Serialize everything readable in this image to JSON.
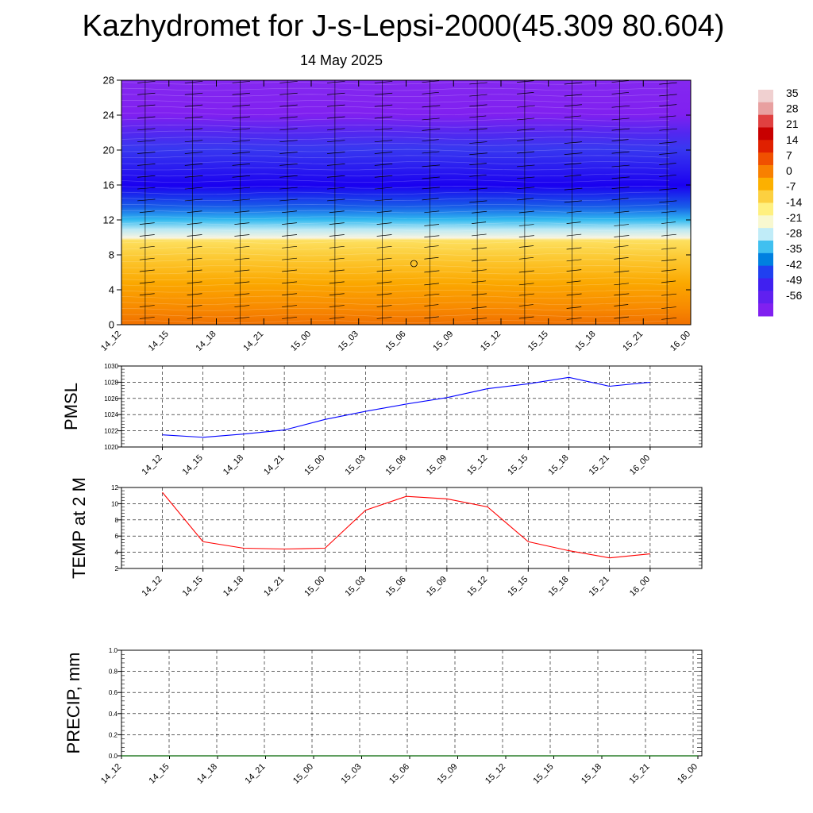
{
  "header": {
    "title": "Kazhydromet for J-s-Lepsi-2000(45.309 80.604)",
    "date": "14 May 2025"
  },
  "time_labels": [
    "14_12",
    "14_15",
    "14_18",
    "14_21",
    "15_00",
    "15_03",
    "15_06",
    "15_09",
    "15_12",
    "15_15",
    "15_18",
    "15_21",
    "16_00"
  ],
  "colorbar": {
    "labels": [
      "35",
      "28",
      "21",
      "14",
      "7",
      "0",
      "-7",
      "-14",
      "-21",
      "-28",
      "-35",
      "-42",
      "-49",
      "-56"
    ],
    "colors": [
      "#f0d0d0",
      "#e8a0a0",
      "#e04040",
      "#c80000",
      "#e02000",
      "#f05000",
      "#f88000",
      "#fcb000",
      "#fcd040",
      "#fff080",
      "#f8f8d0",
      "#c0ecf8",
      "#40c0f0",
      "#0080e0",
      "#2040f0",
      "#4020f0",
      "#6020f0",
      "#8020f0"
    ]
  },
  "chart_data": [
    {
      "type": "heatmap",
      "name": "",
      "x": [
        "14_12",
        "14_15",
        "14_18",
        "14_21",
        "15_00",
        "15_03",
        "15_06",
        "15_09",
        "15_12",
        "15_15",
        "15_18",
        "15_21",
        "16_00"
      ],
      "ylim": [
        0,
        28
      ],
      "yticks": [
        0,
        4,
        8,
        12,
        16,
        20,
        24,
        28
      ],
      "ylabel": "",
      "zrange": [
        -56,
        35
      ]
    },
    {
      "type": "line",
      "ylabel": "PMSL",
      "x": [
        "14_12",
        "14_15",
        "14_18",
        "14_21",
        "15_00",
        "15_03",
        "15_06",
        "15_09",
        "15_12",
        "15_15",
        "15_18",
        "15_21",
        "16_00"
      ],
      "values": [
        1021.5,
        1021.2,
        1021.6,
        1022.1,
        1023.4,
        1024.4,
        1025.3,
        1026.1,
        1027.2,
        1027.8,
        1028.6,
        1027.5,
        1028.0
      ],
      "ylim": [
        1020,
        1030
      ],
      "yticks": [
        1020,
        1022,
        1024,
        1026,
        1028,
        1030
      ],
      "color": "#0000ff"
    },
    {
      "type": "line",
      "ylabel": "TEMP at 2 M",
      "x": [
        "14_12",
        "14_15",
        "14_18",
        "14_21",
        "15_00",
        "15_03",
        "15_06",
        "15_09",
        "15_12",
        "15_15",
        "15_18",
        "15_21",
        "16_00"
      ],
      "values": [
        11.4,
        5.3,
        4.5,
        4.4,
        4.5,
        9.2,
        10.9,
        10.6,
        9.6,
        5.3,
        4.2,
        3.3,
        3.8
      ],
      "ylim": [
        2,
        12
      ],
      "yticks": [
        2,
        4,
        6,
        8,
        10,
        12
      ],
      "color": "#ff0000"
    },
    {
      "type": "line",
      "ylabel": "PRECIP, mm",
      "x": [
        "14_12",
        "14_15",
        "14_18",
        "14_21",
        "15_00",
        "15_03",
        "15_06",
        "15_09",
        "15_12",
        "15_15",
        "15_18",
        "15_21",
        "16_00"
      ],
      "values": [
        0,
        0,
        0,
        0,
        0,
        0,
        0,
        0,
        0,
        0,
        0,
        0,
        0
      ],
      "ylim": [
        0,
        1
      ],
      "yticks": [
        "0.0",
        "0.2",
        "0.4",
        "0.6",
        "0.8",
        "1.0"
      ],
      "color": "#006400"
    }
  ]
}
